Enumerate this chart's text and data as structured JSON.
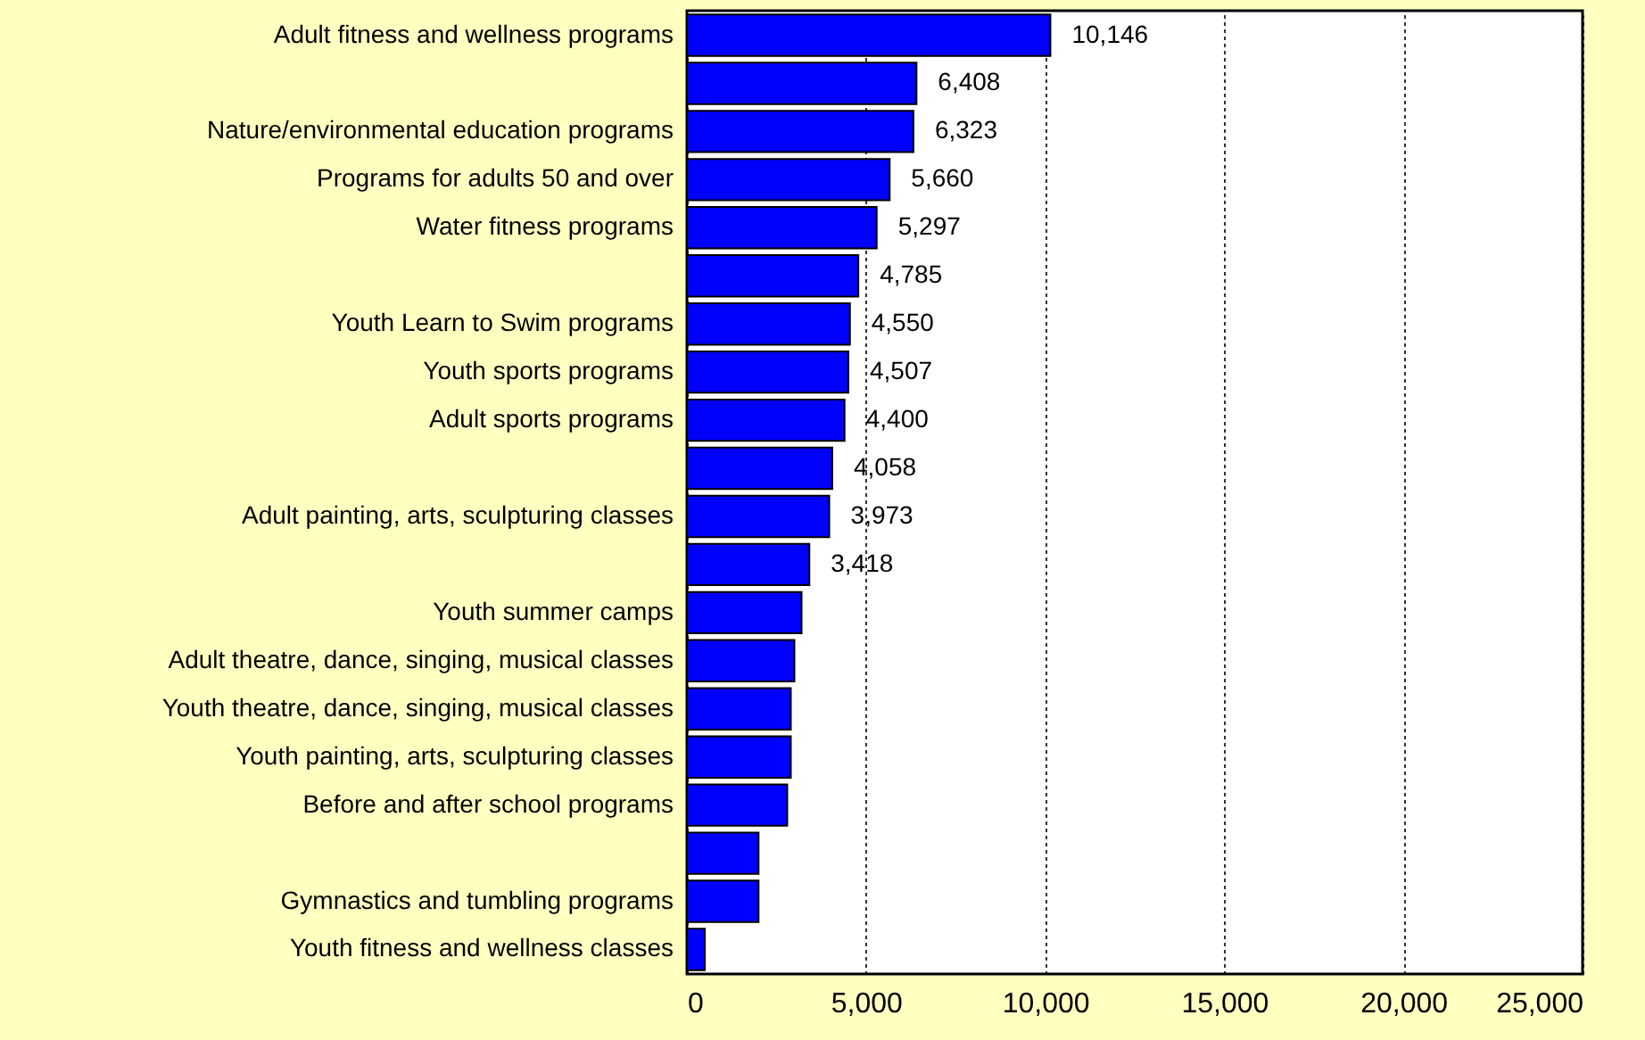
{
  "chart_data": {
    "type": "bar",
    "orientation": "horizontal",
    "categories": [
      "Adult fitness and wellness programs",
      null,
      "Nature/environmental education programs",
      "Programs for adults 50 and over",
      "Water fitness programs",
      null,
      "Youth Learn to Swim programs",
      "Youth sports programs",
      "Adult sports programs ",
      null,
      "Adult painting, arts, sculpturing classes",
      null,
      "Youth summer camps",
      "Adult theatre, dance, singing, musical classes",
      "Youth theatre, dance, singing, musical classes",
      "Youth painting, arts, sculpturing classes",
      "Before and after school programs",
      null,
      "Gymnastics and tumbling programs",
      "Youth fitness and wellness classes"
    ],
    "values": [
      10146,
      6408,
      6323,
      5660,
      5297,
      4785,
      4550,
      4507,
      4400,
      4058,
      3973,
      3418,
      3200,
      3000,
      2900,
      2900,
      2800,
      2000,
      2000,
      500
    ],
    "value_labels": [
      "10,146",
      "6,408",
      "6,323",
      "5,660",
      "5,297",
      "4,785",
      "4,550",
      "4,507",
      "4,400",
      "4,058",
      "3,973",
      "3,418",
      null,
      null,
      null,
      null,
      null,
      null,
      null,
      null
    ],
    "color": "#0000ff",
    "xlim": [
      0,
      25000
    ],
    "xticks": [
      {
        "value": 0,
        "label": "0"
      },
      {
        "value": 5000,
        "label": "5,000"
      },
      {
        "value": 10000,
        "label": "10,000"
      },
      {
        "value": 15000,
        "label": "15,000"
      },
      {
        "value": 20000,
        "label": "20,000"
      },
      {
        "value": 25000,
        "label": "25,000"
      }
    ],
    "grid": "x"
  }
}
